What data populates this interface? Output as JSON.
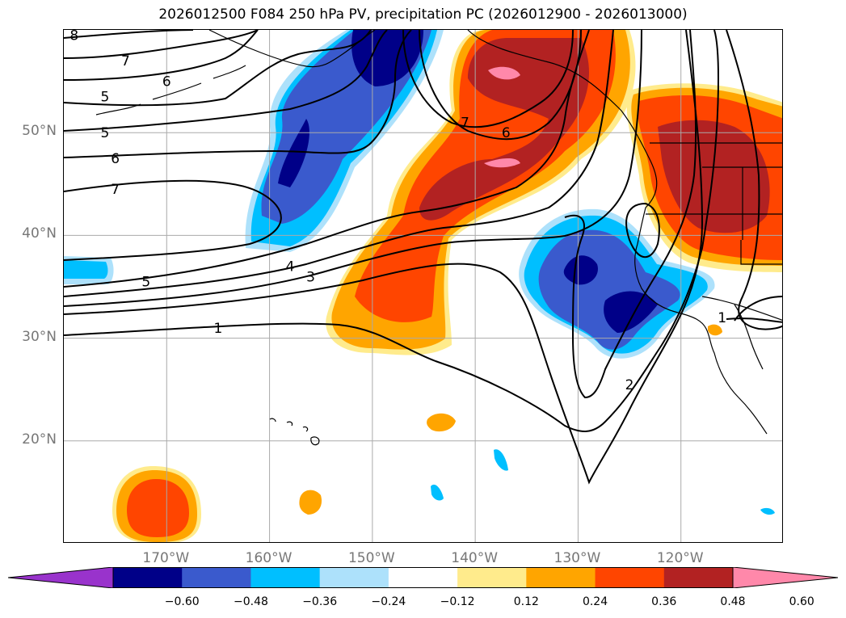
{
  "title": "2026012500 F084 250 hPa PV, precipitation PC (2026012900 - 2026013000)",
  "map": {
    "extent": {
      "lon_min": -180,
      "lon_max": -110,
      "lat_min": 10,
      "lat_max": 60
    },
    "gridlines": true
  },
  "lat_labels": [
    {
      "value": 50,
      "text": "50°N"
    },
    {
      "value": 40,
      "text": "40°N"
    },
    {
      "value": 30,
      "text": "30°N"
    },
    {
      "value": 20,
      "text": "20°N"
    }
  ],
  "lon_labels": [
    {
      "value": -170,
      "text": "170°W"
    },
    {
      "value": -160,
      "text": "160°W"
    },
    {
      "value": -150,
      "text": "150°W"
    },
    {
      "value": -140,
      "text": "140°W"
    },
    {
      "value": -130,
      "text": "130°W"
    },
    {
      "value": -120,
      "text": "120°W"
    }
  ],
  "colorbar": {
    "extend": "both",
    "bins": [
      {
        "color": "#9933cc"
      },
      {
        "color": "#000088"
      },
      {
        "color": "#3a5acd"
      },
      {
        "color": "#00bfff"
      },
      {
        "color": "#ade1fb"
      },
      {
        "color": "#ffffff"
      },
      {
        "color": "#ffeb8c"
      },
      {
        "color": "#ffa500"
      },
      {
        "color": "#ff4500"
      },
      {
        "color": "#b22222"
      },
      {
        "color": "#ff88aa"
      }
    ],
    "ticks": [
      "−0.60",
      "−0.48",
      "−0.36",
      "−0.24",
      "−0.12",
      "0.12",
      "0.24",
      "0.36",
      "0.48",
      "0.60"
    ]
  },
  "pv_contour_labels": [
    {
      "text": "8",
      "lon": -179,
      "lat": 59.5
    },
    {
      "text": "7",
      "lon": -174,
      "lat": 57.0
    },
    {
      "text": "6",
      "lon": -170,
      "lat": 55.0
    },
    {
      "text": "5",
      "lon": -176,
      "lat": 53.5
    },
    {
      "text": "5",
      "lon": -176,
      "lat": 50.0
    },
    {
      "text": "6",
      "lon": -175,
      "lat": 47.5
    },
    {
      "text": "7",
      "lon": -175,
      "lat": 44.5
    },
    {
      "text": "7",
      "lon": -141,
      "lat": 51.0
    },
    {
      "text": "6",
      "lon": -137,
      "lat": 50.0
    },
    {
      "text": "5",
      "lon": -172,
      "lat": 35.5
    },
    {
      "text": "4",
      "lon": -158,
      "lat": 37.0
    },
    {
      "text": "3",
      "lon": -156,
      "lat": 36.0
    },
    {
      "text": "1",
      "lon": -165,
      "lat": 31.0
    },
    {
      "text": "2",
      "lon": -125,
      "lat": 25.5
    },
    {
      "text": "1",
      "lon": -116,
      "lat": 32.0
    }
  ]
}
